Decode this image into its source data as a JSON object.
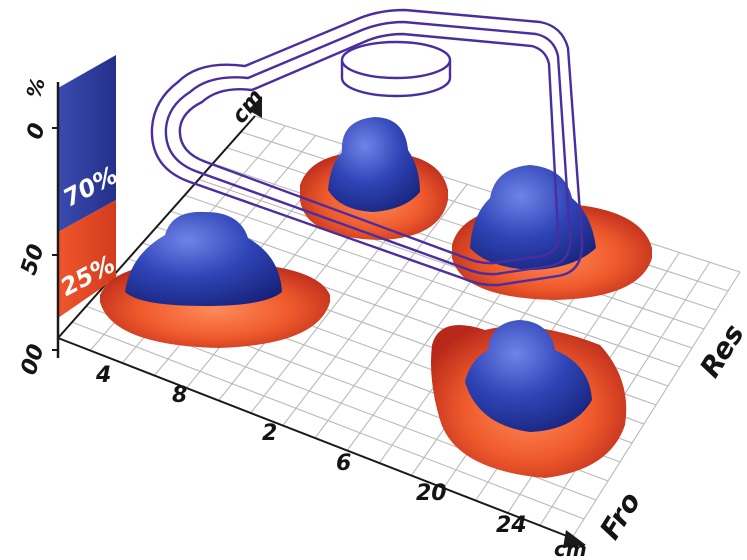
{
  "percent_scale": {
    "unit": "%",
    "ticks": [
      "0",
      "50",
      "00"
    ],
    "segments": [
      {
        "label": "70%",
        "value": 70,
        "color": "#2f3ea0"
      },
      {
        "label": "25%",
        "value": 25,
        "color": "#e84a28"
      }
    ]
  },
  "axes": {
    "front_unit": "cm",
    "front_ticks": [
      "4",
      "8",
      "2",
      "6",
      "20",
      "24"
    ],
    "back_unit": "cm",
    "right_label_lower": "Fro",
    "right_label_upper": "Res"
  },
  "colors": {
    "core": "#2f3fae",
    "skirt": "#e74a25",
    "outline": "#4a2ea0",
    "grid": "#b9b9b9"
  }
}
